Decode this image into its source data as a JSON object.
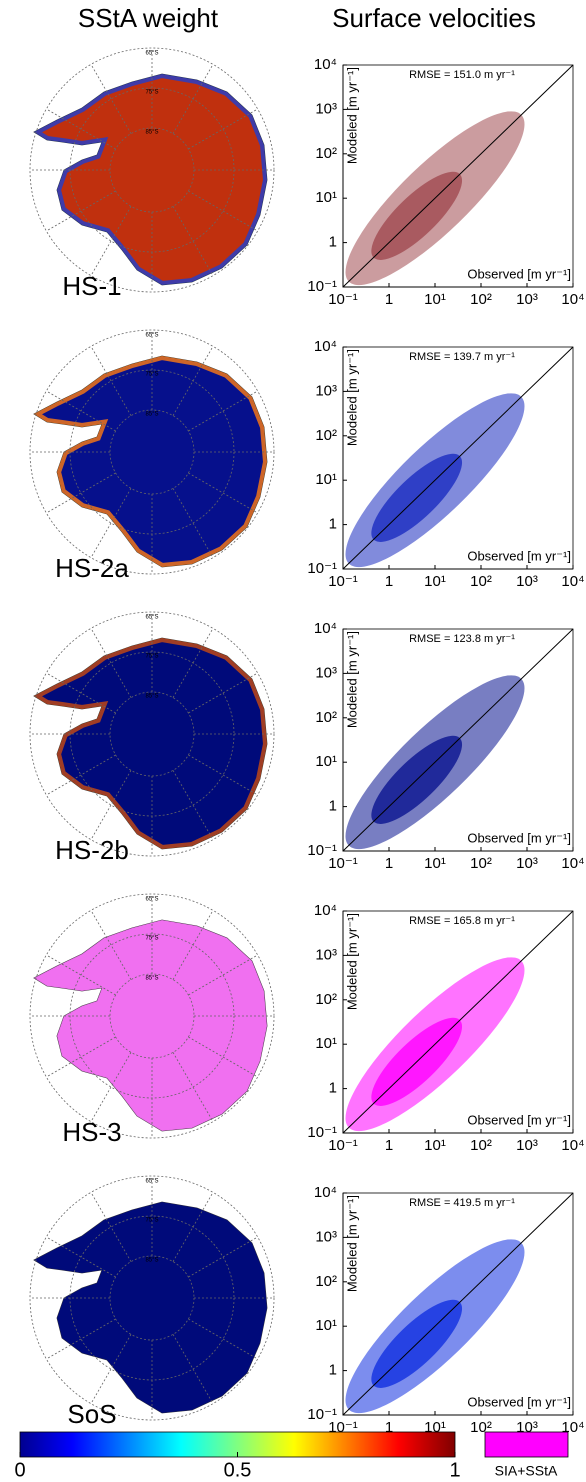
{
  "headers": {
    "left": "SStA weight",
    "right": "Surface velocities"
  },
  "axes": {
    "xlabel": "Observed [m yr⁻¹]",
    "ylabel": "Modeled [m yr⁻¹]",
    "lim": [
      0.1,
      10000
    ],
    "log": true,
    "ticks": [
      {
        "value": 0.1,
        "label": "10⁻¹"
      },
      1,
      {
        "value": 10,
        "label": "10¹"
      },
      {
        "value": 100,
        "label": "10²"
      },
      {
        "value": 1000,
        "label": "10³"
      },
      {
        "value": 10000,
        "label": "10⁴"
      }
    ]
  },
  "map": {
    "lat_labels": [
      "65°S",
      "75°S",
      "85°S"
    ]
  },
  "panels": [
    {
      "label": "HS-1",
      "rmse": "RMSE = 151.0 m yr⁻¹",
      "map_color": "#c0300e",
      "map_edge": "#1f3fd0",
      "cloud_color": "#a04a50"
    },
    {
      "label": "HS-2a",
      "rmse": "RMSE = 139.7 m yr⁻¹",
      "map_color": "#06108c",
      "map_edge": "#ff7a10",
      "cloud_color": "#1a2cc0"
    },
    {
      "label": "HS-2b",
      "rmse": "RMSE = 123.8 m yr⁻¹",
      "map_color": "#000a7a",
      "map_edge": "#c84a10",
      "cloud_color": "#0a1490"
    },
    {
      "label": "HS-3",
      "rmse": "RMSE = 165.8 m yr⁻¹",
      "map_color": "#f070f0",
      "map_edge": "#f070f0",
      "cloud_color": "#ff00ff"
    },
    {
      "label": "SoS",
      "rmse": "RMSE = 419.5 m yr⁻¹",
      "map_color": "#000a7a",
      "map_edge": "#000a7a",
      "cloud_color": "#1030e0"
    }
  ],
  "colorbar": {
    "lim": [
      0,
      1
    ],
    "ticks": [
      0,
      0.5,
      1
    ]
  },
  "legend": {
    "label": "SIA+SStA",
    "color": "#ff00ff"
  }
}
